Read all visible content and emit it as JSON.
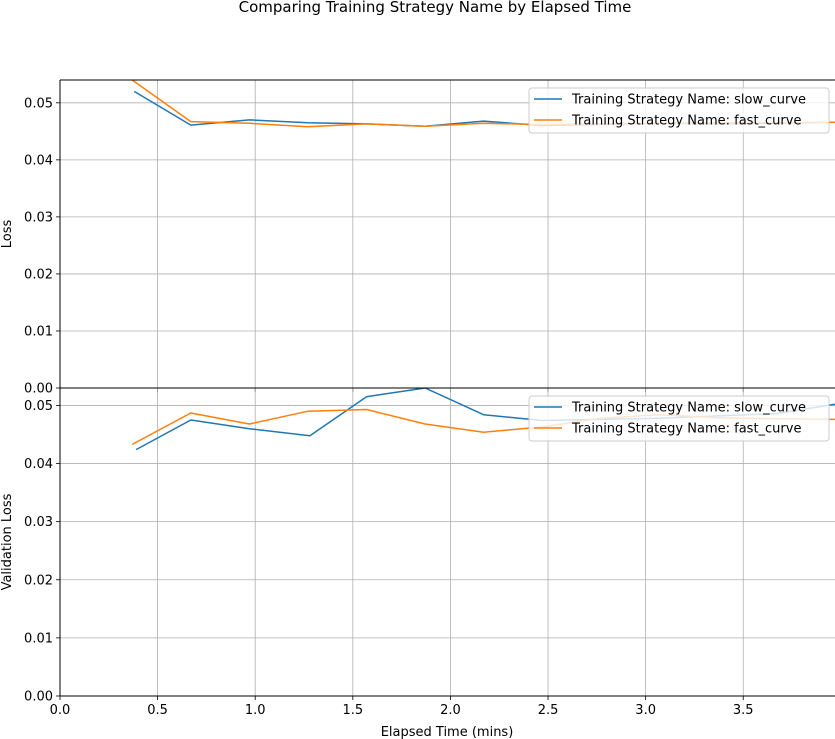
{
  "chart_data": {
    "type": "line",
    "title": "Comparing Training Strategy Name by Elapsed Time",
    "xlabel": "Elapsed Time (mins)",
    "xlim": [
      0,
      3.97
    ],
    "xticks": [
      "0.0",
      "0.5",
      "1.0",
      "1.5",
      "2.0",
      "2.5",
      "3.0",
      "3.5"
    ],
    "grid": true,
    "legend_position": "top-right",
    "panels": [
      {
        "ylabel": "Loss",
        "ylim": [
          0,
          0.054
        ],
        "yticks": [
          "0.00",
          "0.01",
          "0.02",
          "0.03",
          "0.04",
          "0.05"
        ],
        "series": [
          {
            "name": "Training Strategy Name: slow_curve",
            "color": "#1f77b4",
            "x": [
              0.38,
              0.67,
              0.97,
              1.27,
              1.57,
              1.87,
              2.17,
              2.47,
              2.77,
              3.07,
              3.37,
              3.67,
              3.97
            ],
            "y": [
              0.052,
              0.0461,
              0.047,
              0.0465,
              0.0463,
              0.0459,
              0.0468,
              0.046,
              0.0462,
              0.0464,
              0.0463,
              0.0464,
              0.0466
            ]
          },
          {
            "name": "Training Strategy Name: fast_curve",
            "color": "#ff7f0e",
            "x": [
              0.37,
              0.67,
              0.97,
              1.27,
              1.57,
              1.87,
              2.17,
              2.47,
              2.77,
              3.07,
              3.37,
              3.67,
              3.97
            ],
            "y": [
              0.054,
              0.0467,
              0.0464,
              0.0458,
              0.0463,
              0.0459,
              0.0464,
              0.0462,
              0.0463,
              0.0464,
              0.0465,
              0.0465,
              0.0466
            ]
          }
        ]
      },
      {
        "ylabel": "Validation Loss",
        "ylim": [
          0,
          0.053
        ],
        "yticks": [
          "0.00",
          "0.01",
          "0.02",
          "0.03",
          "0.04",
          "0.05"
        ],
        "series": [
          {
            "name": "Training Strategy Name: slow_curve",
            "color": "#1f77b4",
            "x": [
              0.39,
              0.67,
              0.97,
              1.28,
              1.57,
              1.87,
              2.17,
              2.47,
              2.77,
              3.07,
              3.37,
              3.67,
              3.97
            ],
            "y": [
              0.0424,
              0.0475,
              0.046,
              0.0448,
              0.0515,
              0.053,
              0.0484,
              0.0474,
              0.0476,
              0.0478,
              0.0482,
              0.0486,
              0.0502
            ]
          },
          {
            "name": "Training Strategy Name: fast_curve",
            "color": "#ff7f0e",
            "x": [
              0.37,
              0.67,
              0.97,
              1.27,
              1.57,
              1.87,
              2.17,
              2.47,
              2.77,
              3.07,
              3.37,
              3.67,
              3.97
            ],
            "y": [
              0.0433,
              0.0487,
              0.0468,
              0.049,
              0.0493,
              0.0468,
              0.0454,
              0.0463,
              0.0478,
              0.0484,
              0.0479,
              0.0477,
              0.0476
            ]
          }
        ]
      }
    ]
  }
}
